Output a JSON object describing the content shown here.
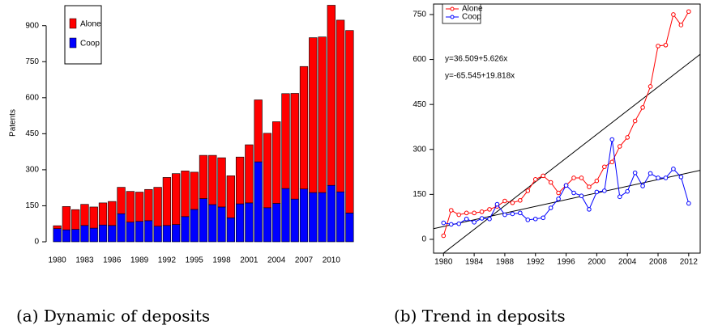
{
  "chart_data": [
    {
      "type": "bar",
      "stacked": true,
      "categories": [
        "1980",
        null,
        null,
        "1983",
        null,
        null,
        "1986",
        null,
        null,
        "1989",
        null,
        null,
        "1992",
        null,
        null,
        "1995",
        null,
        null,
        "1998",
        null,
        null,
        "2001",
        null,
        null,
        "2004",
        null,
        null,
        "2007",
        null,
        null,
        "2010",
        null,
        null
      ],
      "series": [
        {
          "name": "Alone",
          "color": "#ff0000",
          "values": [
            12,
            97,
            82,
            88,
            88,
            92,
            100,
            110,
            128,
            122,
            130,
            162,
            200,
            212,
            190,
            155,
            180,
            205,
            205,
            175,
            195,
            242,
            258,
            310,
            340,
            395,
            440,
            510,
            645,
            648,
            750,
            715,
            760
          ]
        },
        {
          "name": "Coop",
          "color": "#0000ff",
          "values": [
            55,
            50,
            52,
            68,
            57,
            70,
            68,
            117,
            82,
            85,
            88,
            65,
            68,
            72,
            105,
            135,
            180,
            155,
            145,
            100,
            158,
            162,
            333,
            142,
            160,
            222,
            178,
            220,
            205,
            205,
            235,
            208,
            120
          ]
        }
      ],
      "ylabel": "Patents",
      "ylim": [
        0,
        990
      ],
      "yticks": [
        0,
        150,
        300,
        450,
        600,
        750,
        900
      ],
      "legend": "upper left",
      "caption": "(a) Dynamic of deposits"
    },
    {
      "type": "line",
      "x": [
        1980,
        1981,
        1982,
        1983,
        1984,
        1985,
        1986,
        1987,
        1988,
        1989,
        1990,
        1991,
        1992,
        1993,
        1994,
        1995,
        1996,
        1997,
        1998,
        1999,
        2000,
        2001,
        2002,
        2003,
        2004,
        2005,
        2006,
        2007,
        2008,
        2009,
        2010,
        2011,
        2012
      ],
      "series": [
        {
          "name": "Alone",
          "color": "#ff0000",
          "values": [
            12,
            97,
            82,
            88,
            88,
            92,
            100,
            110,
            128,
            122,
            130,
            162,
            200,
            212,
            190,
            155,
            180,
            205,
            205,
            175,
            195,
            242,
            258,
            310,
            340,
            395,
            440,
            510,
            645,
            648,
            750,
            715,
            760
          ]
        },
        {
          "name": "Coop",
          "color": "#0000ff",
          "values": [
            55,
            50,
            52,
            68,
            57,
            70,
            68,
            117,
            82,
            85,
            88,
            65,
            68,
            72,
            105,
            135,
            180,
            155,
            145,
            100,
            158,
            162,
            333,
            142,
            160,
            222,
            178,
            220,
            205,
            205,
            235,
            208,
            120
          ]
        }
      ],
      "xlim": [
        1978.7,
        2013.5
      ],
      "ylim": [
        -46,
        785
      ],
      "xticks": [
        1980,
        1984,
        1988,
        1992,
        1996,
        2000,
        2004,
        2008,
        2012
      ],
      "yticks": [
        0,
        150,
        300,
        450,
        600,
        750
      ],
      "trend": true,
      "annotations": [
        {
          "text": "y=36.509+5.626x",
          "color": "#0000ff"
        },
        {
          "text": "y=-65.545+19.818x",
          "color": "#ff0000"
        }
      ],
      "legend": "upper left",
      "caption": "(b) Trend in deposits"
    }
  ]
}
